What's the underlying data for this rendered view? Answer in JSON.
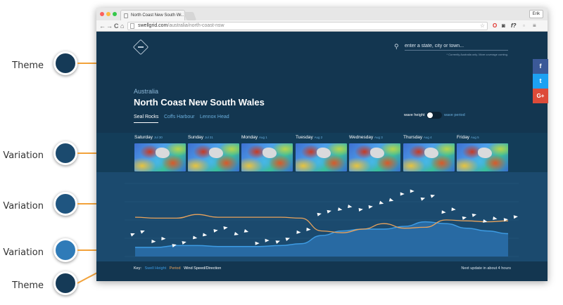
{
  "annotations": [
    {
      "label": "Theme",
      "color": "#153a57"
    },
    {
      "label": "Variation",
      "color": "#1b4a6e"
    },
    {
      "label": "Variation",
      "color": "#1f5580"
    },
    {
      "label": "Variation",
      "color": "#2f7bb8"
    },
    {
      "label": "Theme",
      "color": "#153a57"
    }
  ],
  "browser": {
    "tab_title": "North Coast New South W...",
    "tab_close": "×",
    "user_badge": "Erik",
    "url_domain": "swellgrid.com",
    "url_path": "/australia/north-coast-nsw",
    "nav": {
      "back": "←",
      "forward": "→",
      "reload": "C",
      "home": "⌂"
    }
  },
  "site": {
    "search_placeholder": "enter a state, city or town...",
    "search_note": "* Currently Australia only. More coverage coming.",
    "region": "Australia",
    "area_title": "North Coast New South Wales",
    "locations": [
      "Seal Rocks",
      "Coffs Harbour",
      "Lennox Head"
    ],
    "toggle_left": "wave height",
    "toggle_right": "wave period",
    "days": [
      {
        "name": "Saturday",
        "date": "Jul 30"
      },
      {
        "name": "Sunday",
        "date": "Jul 31"
      },
      {
        "name": "Monday",
        "date": "Aug 1"
      },
      {
        "name": "Tuesday",
        "date": "Aug 2"
      },
      {
        "name": "Wednesday",
        "date": "Aug 3"
      },
      {
        "name": "Thursday",
        "date": "Aug 4"
      },
      {
        "name": "Friday",
        "date": "Aug 5"
      }
    ],
    "key_label": "Key:",
    "key_swell": "Swell Height",
    "key_period": "Period",
    "key_wind": "Wind Speed/Direction",
    "next_update": "Next update in about 4 hours",
    "colors": {
      "swell": "#3d9be3",
      "period": "#e9a35c",
      "accent": "#6aaedc"
    }
  },
  "chart_data": {
    "type": "line",
    "title": "",
    "xlabel": "",
    "ylabel": "",
    "series": [
      {
        "name": "Swell Height",
        "style": "area",
        "values": [
          1.0,
          1.0,
          1.2,
          1.2,
          1.1,
          1.1,
          1.1,
          1.2,
          1.4,
          2.3,
          2.8,
          3.0,
          3.0,
          3.3,
          3.8,
          3.6,
          3.1,
          2.8,
          2.5
        ]
      },
      {
        "name": "Period",
        "style": "line",
        "values": [
          4.3,
          4.2,
          4.2,
          4.6,
          4.3,
          4.3,
          4.3,
          4.3,
          4.2,
          2.8,
          2.6,
          3.0,
          3.6,
          3.1,
          3.2,
          4.0,
          3.9,
          3.8,
          3.9
        ]
      },
      {
        "name": "Wind Speed",
        "style": "arrows",
        "values": [
          2.6,
          1.8,
          1.4,
          2.2,
          3.0,
          2.6,
          1.6,
          1.8,
          2.8,
          4.8,
          5.3,
          5.3,
          6.0,
          7.0,
          6.5,
          5.0,
          4.4,
          4.0,
          4.2
        ]
      }
    ],
    "ylim": [
      0,
      8
    ]
  },
  "social": [
    {
      "label": "f",
      "color": "#3b5998"
    },
    {
      "label": "t",
      "color": "#1da1f2"
    },
    {
      "label": "G+",
      "color": "#dd4b39"
    }
  ]
}
